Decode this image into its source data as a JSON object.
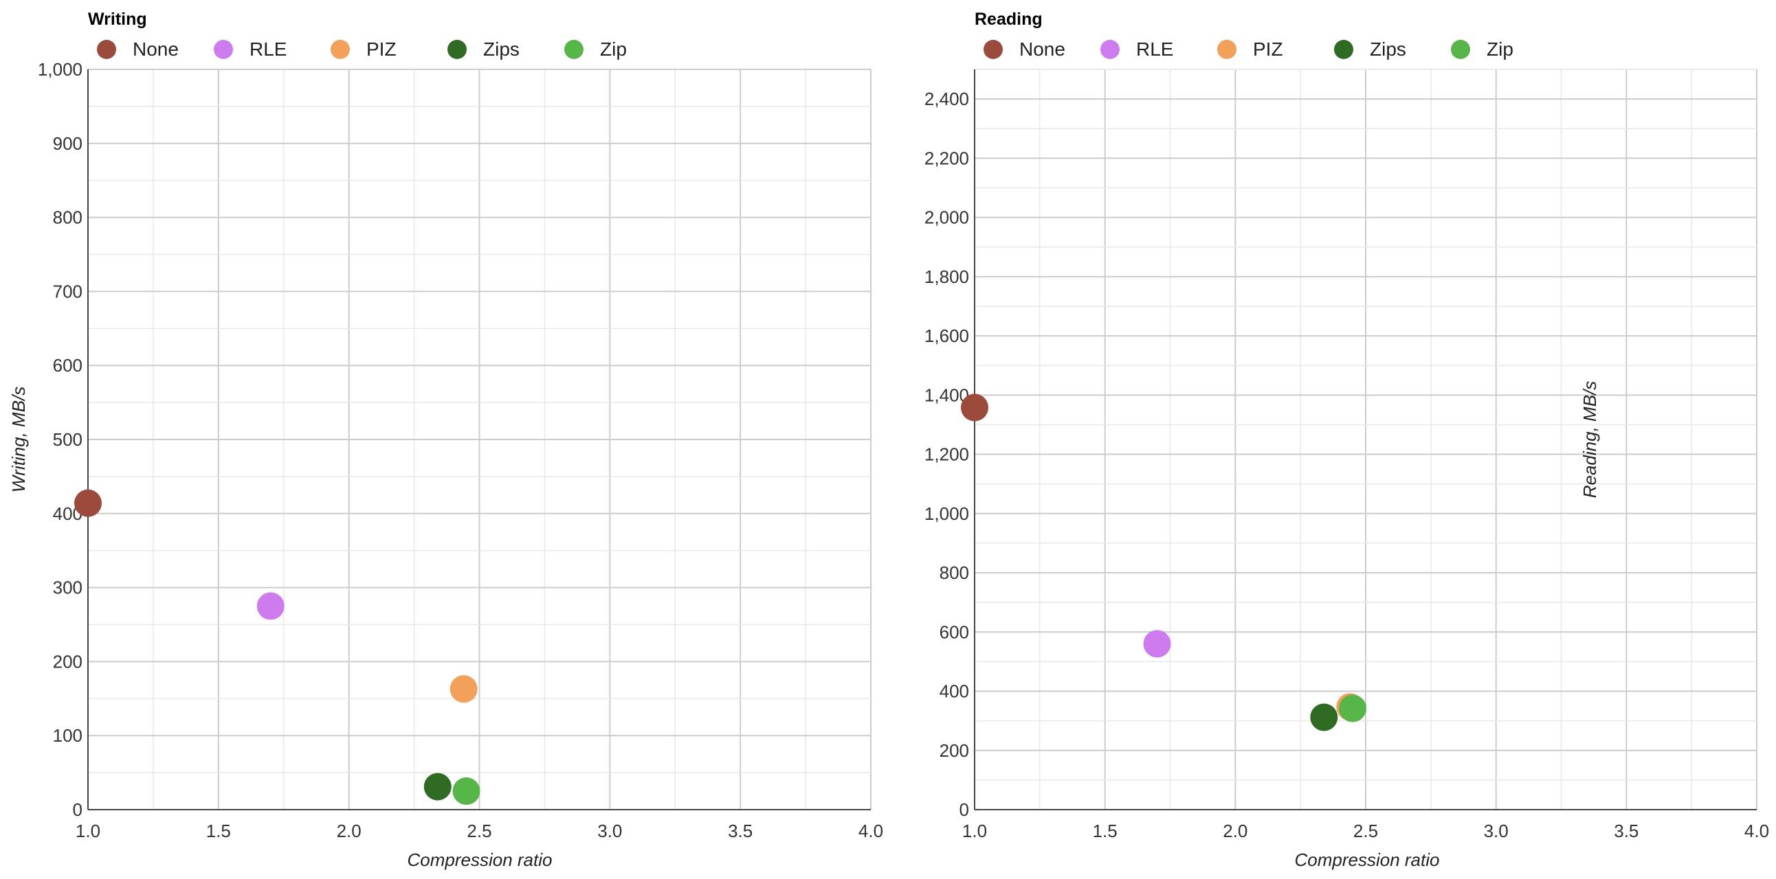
{
  "chart_data": [
    {
      "type": "scatter",
      "title": "Writing",
      "xlabel": "Compression ratio",
      "ylabel": "Writing, MB/s",
      "xlim": [
        1.0,
        4.0
      ],
      "ylim": [
        0,
        1000
      ],
      "x_ticks": [
        "1.0",
        "1.5",
        "2.0",
        "2.5",
        "3.0",
        "3.5",
        "4.0"
      ],
      "y_ticks": [
        "0",
        "100",
        "200",
        "300",
        "400",
        "500",
        "600",
        "700",
        "800",
        "900",
        "1,000"
      ],
      "grid": true,
      "legend_position": "top-left",
      "series": [
        {
          "name": "None",
          "color": "#9b4a3c",
          "x": [
            1.0
          ],
          "y": [
            414
          ]
        },
        {
          "name": "RLE",
          "color": "#cf7bf0",
          "x": [
            1.7
          ],
          "y": [
            275
          ]
        },
        {
          "name": "PIZ",
          "color": "#f3a05a",
          "x": [
            2.44
          ],
          "y": [
            163
          ]
        },
        {
          "name": "Zips",
          "color": "#2f6b22",
          "x": [
            2.34
          ],
          "y": [
            31
          ]
        },
        {
          "name": "Zip",
          "color": "#57b648",
          "x": [
            2.45
          ],
          "y": [
            25
          ]
        }
      ]
    },
    {
      "type": "scatter",
      "title": "Reading",
      "xlabel": "Compression ratio",
      "ylabel": "Reading, MB/s",
      "xlim": [
        1.0,
        4.0
      ],
      "ylim": [
        0,
        2500
      ],
      "x_ticks": [
        "1.0",
        "1.5",
        "2.0",
        "2.5",
        "3.0",
        "3.5",
        "4.0"
      ],
      "y_ticks": [
        "0",
        "200",
        "400",
        "600",
        "800",
        "1,000",
        "1,200",
        "1,400",
        "1,600",
        "1,800",
        "2,000",
        "2,200",
        "2,400"
      ],
      "grid": true,
      "legend_position": "top-left",
      "series": [
        {
          "name": "None",
          "color": "#9b4a3c",
          "x": [
            1.0
          ],
          "y": [
            1358
          ]
        },
        {
          "name": "RLE",
          "color": "#cf7bf0",
          "x": [
            1.7
          ],
          "y": [
            560
          ]
        },
        {
          "name": "PIZ",
          "color": "#f3a05a",
          "x": [
            2.44
          ],
          "y": [
            347
          ]
        },
        {
          "name": "Zips",
          "color": "#2f6b22",
          "x": [
            2.34
          ],
          "y": [
            312
          ]
        },
        {
          "name": "Zip",
          "color": "#57b648",
          "x": [
            2.45
          ],
          "y": [
            342
          ]
        }
      ]
    }
  ]
}
